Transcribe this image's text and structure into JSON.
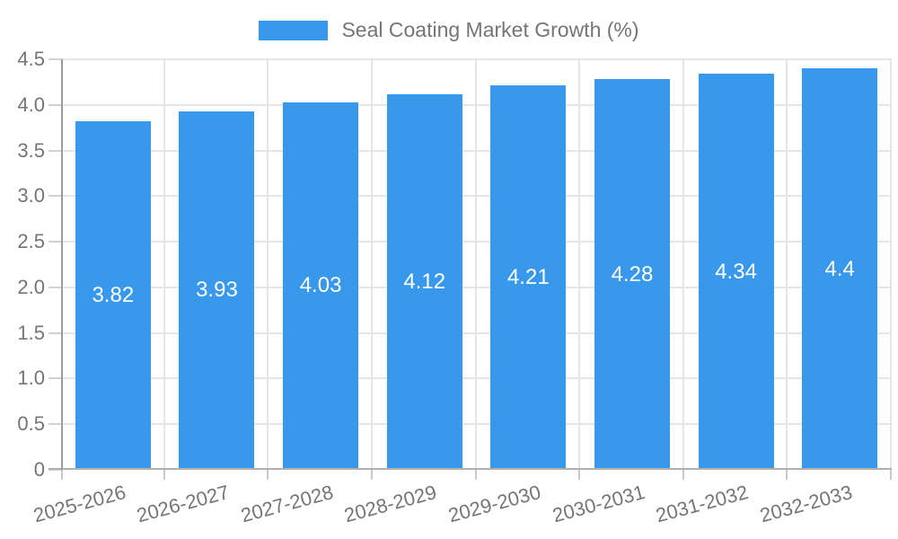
{
  "legend": {
    "label": "Seal Coating Market Growth (%)",
    "swatch_color": "#3898ec"
  },
  "chart_data": {
    "type": "bar",
    "title": "Seal Coating Market Growth (%)",
    "categories": [
      "2025-2026",
      "2026-2027",
      "2027-2028",
      "2028-2029",
      "2029-2030",
      "2030-2031",
      "2031-2032",
      "2032-2033"
    ],
    "values": [
      3.82,
      3.93,
      4.03,
      4.12,
      4.21,
      4.28,
      4.34,
      4.4
    ],
    "bar_labels": [
      "3.82",
      "3.93",
      "4.03",
      "4.12",
      "4.21",
      "4.28",
      "4.34",
      "4.4"
    ],
    "xlabel": "",
    "ylabel": "",
    "ylim": [
      0,
      4.5
    ],
    "y_tick_step": 0.5,
    "y_tick_labels": [
      "0",
      "0.5",
      "1.0",
      "1.5",
      "2.0",
      "2.5",
      "3.0",
      "3.5",
      "4.0",
      "4.5"
    ],
    "grid": true,
    "legend_position": "top-center",
    "x_label_rotation_deg": -15,
    "colors": {
      "bar": "#3898ec",
      "value_label": "#ffffff",
      "axis_text": "#757575",
      "gridline": "#e5e5e5",
      "x_axis_line": "#b0b0b0",
      "y_axis_line": "#9b9b9b"
    }
  }
}
